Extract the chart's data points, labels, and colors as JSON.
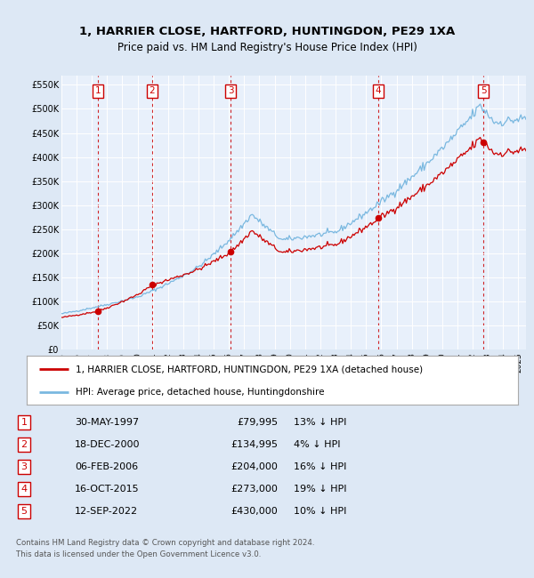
{
  "title": "1, HARRIER CLOSE, HARTFORD, HUNTINGDON, PE29 1XA",
  "subtitle": "Price paid vs. HM Land Registry's House Price Index (HPI)",
  "hpi_label": "HPI: Average price, detached house, Huntingdonshire",
  "property_label": "1, HARRIER CLOSE, HARTFORD, HUNTINGDON, PE29 1XA (detached house)",
  "footer1": "Contains HM Land Registry data © Crown copyright and database right 2024.",
  "footer2": "This data is licensed under the Open Government Licence v3.0.",
  "bg_color": "#dde8f5",
  "plot_bg": "#e8f0fb",
  "hpi_color": "#7ab8e0",
  "price_color": "#cc0000",
  "marker_color": "#cc0000",
  "dashed_color": "#cc0000",
  "purchases": [
    {
      "num": 1,
      "date": "30-MAY-1997",
      "year": 1997.41,
      "price": 79995,
      "hpi_pct": "13% ↓ HPI"
    },
    {
      "num": 2,
      "date": "18-DEC-2000",
      "year": 2000.96,
      "price": 134995,
      "hpi_pct": "4% ↓ HPI"
    },
    {
      "num": 3,
      "date": "06-FEB-2006",
      "year": 2006.1,
      "price": 204000,
      "hpi_pct": "16% ↓ HPI"
    },
    {
      "num": 4,
      "date": "16-OCT-2015",
      "year": 2015.79,
      "price": 273000,
      "hpi_pct": "19% ↓ HPI"
    },
    {
      "num": 5,
      "date": "12-SEP-2022",
      "year": 2022.7,
      "price": 430000,
      "hpi_pct": "10% ↓ HPI"
    }
  ],
  "ylim": [
    0,
    570000
  ],
  "xlim_start": 1995.0,
  "xlim_end": 2025.5,
  "yticks": [
    0,
    50000,
    100000,
    150000,
    200000,
    250000,
    300000,
    350000,
    400000,
    450000,
    500000,
    550000
  ],
  "ytick_labels": [
    "£0",
    "£50K",
    "£100K",
    "£150K",
    "£200K",
    "£250K",
    "£300K",
    "£350K",
    "£400K",
    "£450K",
    "£500K",
    "£550K"
  ],
  "xticks": [
    1995,
    1996,
    1997,
    1998,
    1999,
    2000,
    2001,
    2002,
    2003,
    2004,
    2005,
    2006,
    2007,
    2008,
    2009,
    2010,
    2011,
    2012,
    2013,
    2014,
    2015,
    2016,
    2017,
    2018,
    2019,
    2020,
    2021,
    2022,
    2023,
    2024,
    2025
  ]
}
